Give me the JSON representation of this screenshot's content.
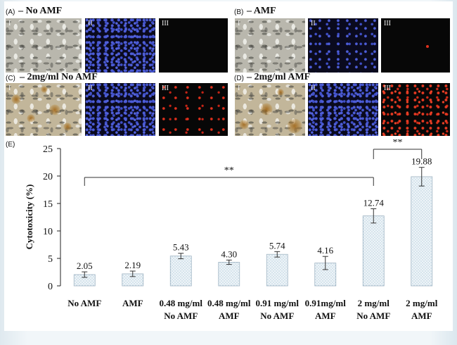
{
  "panels": [
    {
      "letter": "(A)",
      "title": "– No AMF",
      "tiles": [
        "I",
        "II",
        "III"
      ]
    },
    {
      "letter": "(B)",
      "title": "– AMF",
      "tiles": [
        "I",
        "II",
        "III"
      ]
    },
    {
      "letter": "(C)",
      "title": "– 2mg/ml No AMF",
      "tiles": [
        "I",
        "II",
        "III"
      ]
    },
    {
      "letter": "(D)",
      "title": "– 2mg/ml AMF",
      "tiles": [
        "I",
        "II",
        "III"
      ]
    }
  ],
  "chart_panel_label": "(E)",
  "colors": {
    "bar_fill": "#eef4f8",
    "bar_dots": "#7aa5c2",
    "axis": "#222222",
    "brightfield": "#b9b7ad",
    "dapi_blue": "#4d5dd8",
    "pi_red": "#e0301c"
  },
  "chart_data": {
    "type": "bar",
    "categories": [
      [
        "No AMF"
      ],
      [
        "AMF"
      ],
      [
        "0.48 mg/ml",
        "No AMF"
      ],
      [
        "0.48 mg/ml",
        "AMF"
      ],
      [
        "0.91 mg/ml",
        "No AMF"
      ],
      [
        "0.91mg/ml",
        "AMF"
      ],
      [
        "2 mg/ml",
        "No AMF"
      ],
      [
        "2 mg/ml",
        "AMF"
      ]
    ],
    "values": [
      2.05,
      2.19,
      5.43,
      4.3,
      5.74,
      4.16,
      12.74,
      19.88
    ],
    "value_labels": [
      "2.05",
      "2.19",
      "5.43",
      "4.30",
      "5.74",
      "4.16",
      "12.74",
      "19.88"
    ],
    "errors": [
      0.5,
      0.5,
      0.5,
      0.4,
      0.5,
      1.2,
      1.3,
      1.7
    ],
    "ylabel": "Cytotoxicity (%)",
    "ylim": [
      0,
      25
    ],
    "yticks": [
      0,
      5,
      10,
      15,
      20,
      25
    ],
    "significance": [
      {
        "from": 0,
        "to": 6,
        "label": "**"
      },
      {
        "from": 6,
        "to": 7,
        "label": "**"
      }
    ],
    "grid": false
  }
}
